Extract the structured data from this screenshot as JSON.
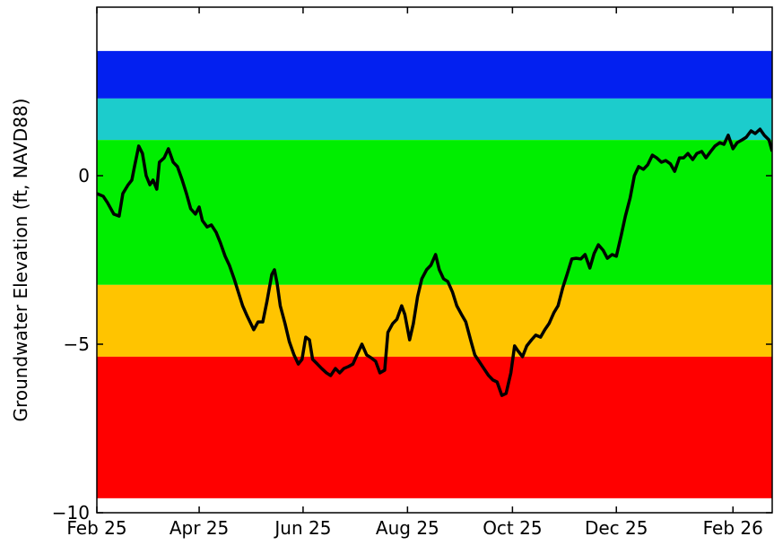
{
  "chart_data": {
    "type": "line",
    "y_label": "Groundwater Elevation (ft, NAVD88)",
    "xlim": [
      0,
      12.74
    ],
    "ylim": [
      -10,
      5
    ],
    "xticks": [
      {
        "value": 0,
        "label": "Feb 25"
      },
      {
        "value": 1.93,
        "label": "Apr 25"
      },
      {
        "value": 3.89,
        "label": "Jun 25"
      },
      {
        "value": 5.86,
        "label": "Aug 25"
      },
      {
        "value": 7.84,
        "label": "Oct 25"
      },
      {
        "value": 9.8,
        "label": "Dec 25"
      },
      {
        "value": 12,
        "label": "Feb 26"
      }
    ],
    "yticks": [
      {
        "value": -10,
        "label": "−10"
      },
      {
        "value": -5,
        "label": "−5"
      },
      0
    ],
    "bands": [
      {
        "from": 2.29,
        "to": 3.7,
        "color": "#0320f0"
      },
      {
        "from": 1.06,
        "to": 2.29,
        "color": "#1ccccc"
      },
      {
        "from": -3.24,
        "to": 1.06,
        "color": "#00ee00"
      },
      {
        "from": -5.37,
        "to": -3.24,
        "color": "#ffc400"
      },
      {
        "from": -9.57,
        "to": -5.37,
        "color": "#ff0000"
      }
    ],
    "series": [
      {
        "color": "#000000",
        "x": [
          0,
          0.12,
          0.2,
          0.32,
          0.42,
          0.49,
          0.59,
          0.66,
          0.71,
          0.79,
          0.86,
          0.93,
          1.0,
          1.06,
          1.13,
          1.18,
          1.27,
          1.35,
          1.44,
          1.52,
          1.61,
          1.69,
          1.77,
          1.86,
          1.93,
          1.99,
          2.08,
          2.16,
          2.25,
          2.33,
          2.42,
          2.5,
          2.59,
          2.67,
          2.75,
          2.84,
          2.96,
          3.04,
          3.13,
          3.21,
          3.3,
          3.35,
          3.4,
          3.46,
          3.55,
          3.63,
          3.72,
          3.8,
          3.87,
          3.94,
          4.01,
          4.07,
          4.16,
          4.24,
          4.33,
          4.41,
          4.5,
          4.58,
          4.66,
          4.75,
          4.83,
          4.92,
          5.0,
          5.09,
          5.17,
          5.26,
          5.34,
          5.43,
          5.49,
          5.58,
          5.66,
          5.75,
          5.81,
          5.9,
          5.97,
          6.05,
          6.13,
          6.22,
          6.3,
          6.39,
          6.46,
          6.54,
          6.62,
          6.71,
          6.79,
          6.88,
          6.96,
          7.05,
          7.13,
          7.22,
          7.3,
          7.39,
          7.47,
          7.55,
          7.64,
          7.72,
          7.81,
          7.88,
          7.94,
          8.03,
          8.11,
          8.2,
          8.28,
          8.37,
          8.45,
          8.53,
          8.62,
          8.7,
          8.79,
          8.87,
          8.96,
          9.04,
          9.13,
          9.21,
          9.3,
          9.38,
          9.46,
          9.55,
          9.63,
          9.72,
          9.8,
          9.89,
          9.97,
          10.06,
          10.14,
          10.22,
          10.31,
          10.39,
          10.48,
          10.56,
          10.65,
          10.73,
          10.82,
          10.9,
          10.99,
          11.07,
          11.15,
          11.24,
          11.32,
          11.41,
          11.49,
          11.58,
          11.66,
          11.75,
          11.83,
          11.91,
          12.0,
          12.08,
          12.17,
          12.25,
          12.34,
          12.42,
          12.51,
          12.59,
          12.68,
          12.74
        ],
        "values": [
          -0.53,
          -0.61,
          -0.8,
          -1.14,
          -1.2,
          -0.53,
          -0.27,
          -0.13,
          0.27,
          0.88,
          0.66,
          0,
          -0.27,
          -0.13,
          -0.4,
          0.4,
          0.53,
          0.8,
          0.4,
          0.27,
          -0.13,
          -0.53,
          -0.98,
          -1.14,
          -0.93,
          -1.33,
          -1.52,
          -1.46,
          -1.68,
          -1.99,
          -2.39,
          -2.66,
          -3.06,
          -3.46,
          -3.86,
          -4.18,
          -4.57,
          -4.34,
          -4.34,
          -3.72,
          -2.93,
          -2.79,
          -3.19,
          -3.86,
          -4.39,
          -4.92,
          -5.32,
          -5.59,
          -5.45,
          -4.79,
          -4.87,
          -5.45,
          -5.59,
          -5.72,
          -5.85,
          -5.93,
          -5.72,
          -5.85,
          -5.72,
          -5.66,
          -5.59,
          -5.27,
          -5.0,
          -5.32,
          -5.4,
          -5.51,
          -5.85,
          -5.77,
          -4.65,
          -4.39,
          -4.26,
          -3.86,
          -4.12,
          -4.87,
          -4.39,
          -3.59,
          -3.06,
          -2.79,
          -2.66,
          -2.34,
          -2.79,
          -3.06,
          -3.14,
          -3.46,
          -3.86,
          -4.12,
          -4.34,
          -4.87,
          -5.32,
          -5.53,
          -5.72,
          -5.93,
          -6.06,
          -6.12,
          -6.52,
          -6.46,
          -5.85,
          -5.05,
          -5.19,
          -5.37,
          -5.05,
          -4.87,
          -4.73,
          -4.79,
          -4.57,
          -4.39,
          -4.07,
          -3.86,
          -3.32,
          -2.93,
          -2.47,
          -2.45,
          -2.47,
          -2.34,
          -2.74,
          -2.31,
          -2.05,
          -2.21,
          -2.45,
          -2.34,
          -2.39,
          -1.78,
          -1.2,
          -0.66,
          0,
          0.27,
          0.19,
          0.32,
          0.61,
          0.53,
          0.4,
          0.45,
          0.35,
          0.13,
          0.53,
          0.53,
          0.66,
          0.48,
          0.66,
          0.72,
          0.53,
          0.72,
          0.88,
          0.98,
          0.93,
          1.2,
          0.8,
          0.98,
          1.06,
          1.14,
          1.33,
          1.25,
          1.38,
          1.2,
          1.06,
          0.72
        ]
      }
    ]
  }
}
